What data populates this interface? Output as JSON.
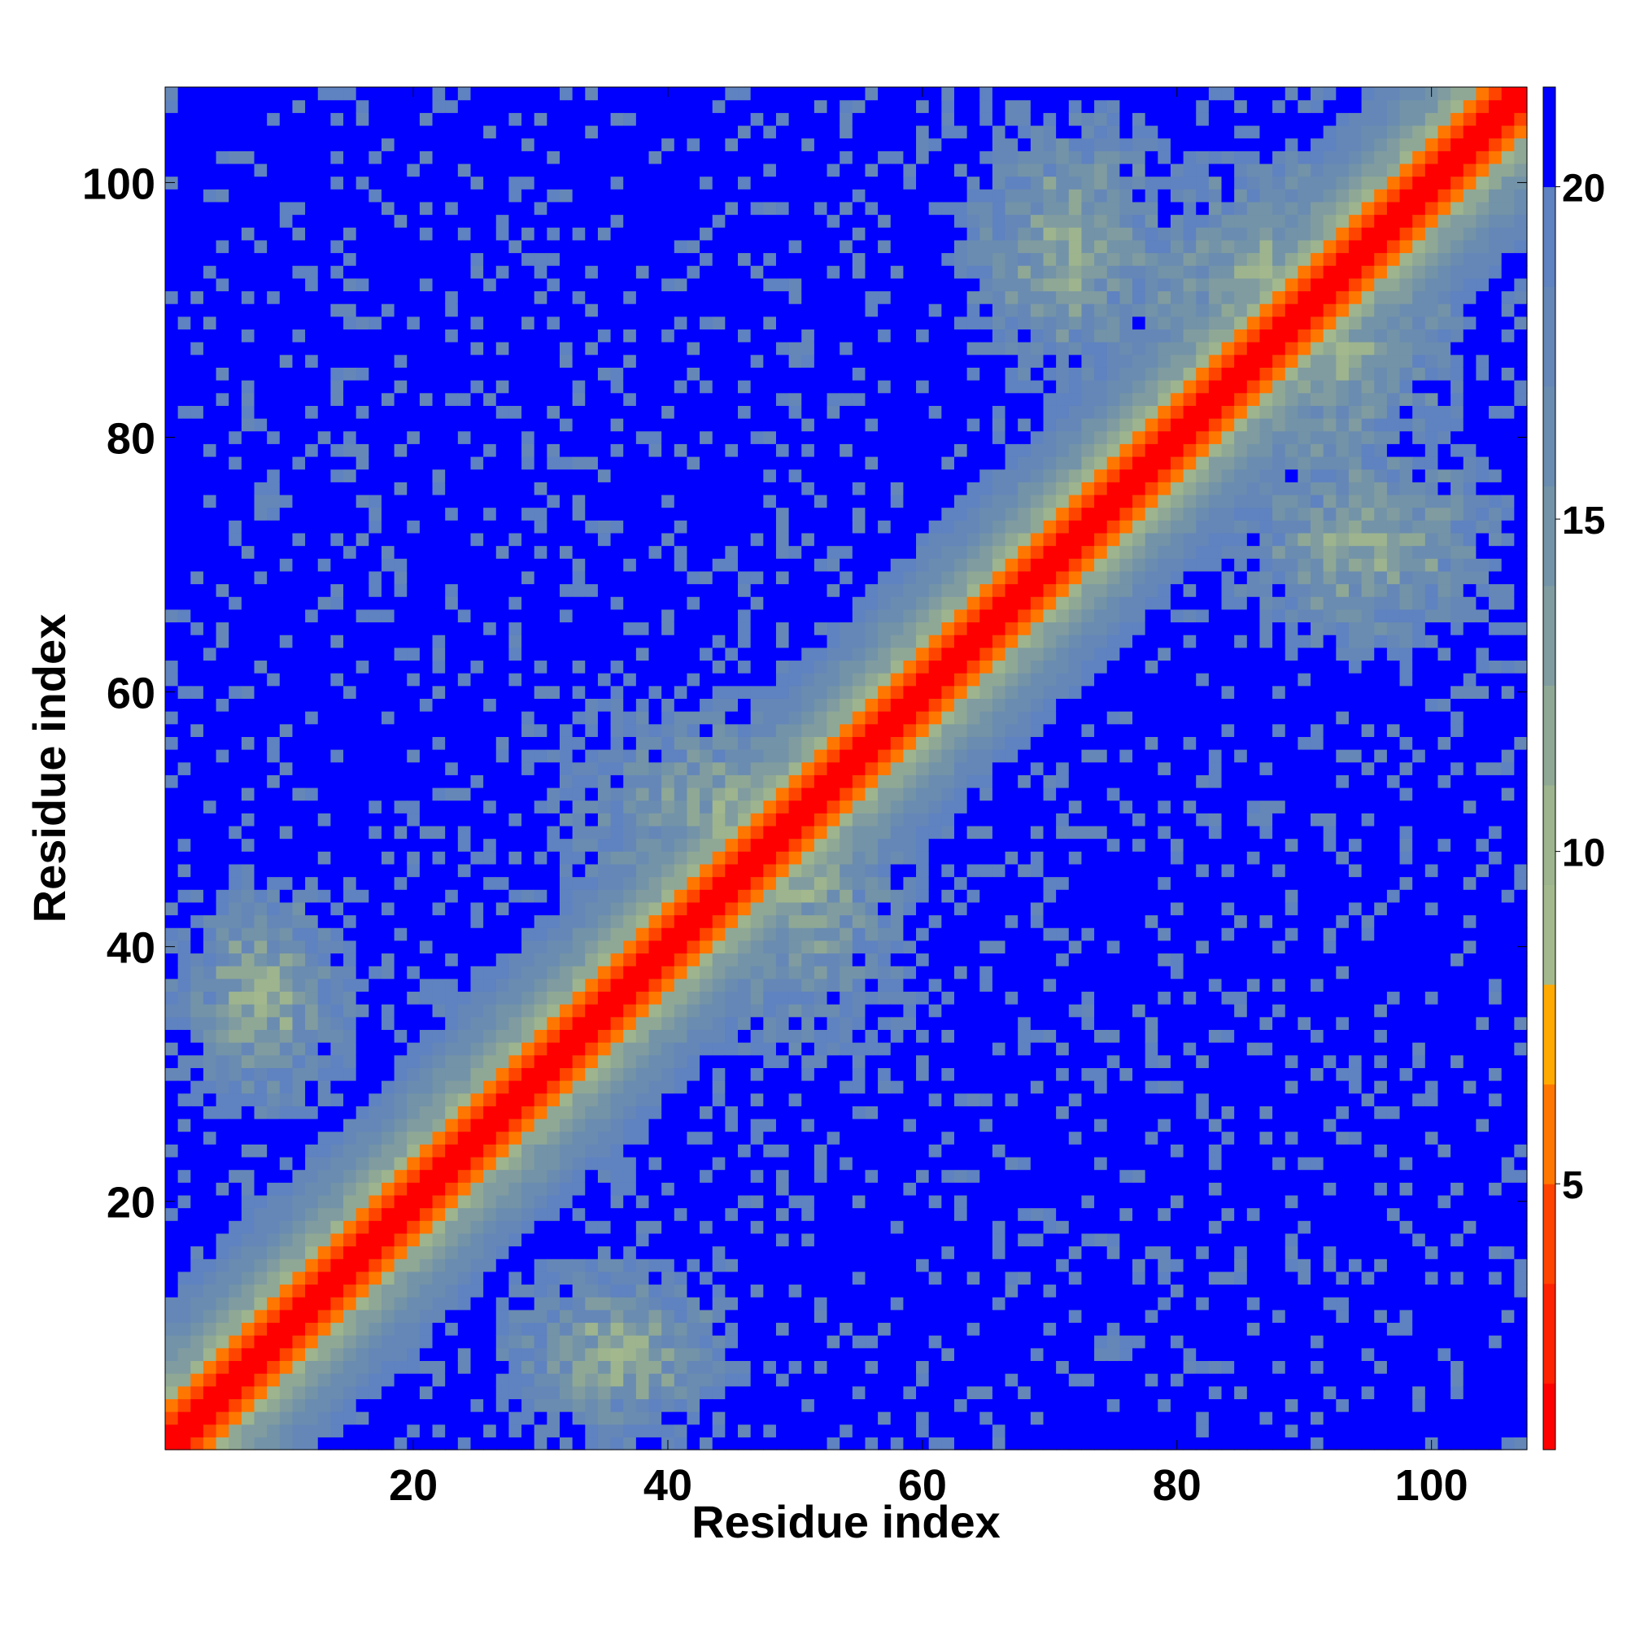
{
  "chart_data": {
    "type": "heatmap",
    "title": "",
    "xlabel": "Residue index",
    "ylabel": "Residue index",
    "n_residues": 107,
    "xlim": [
      1,
      107
    ],
    "ylim": [
      1,
      107
    ],
    "x_ticks": [
      20,
      40,
      60,
      80,
      100
    ],
    "y_ticks": [
      20,
      40,
      60,
      80,
      100
    ],
    "colorbar": {
      "ticks": [
        5,
        10,
        15,
        20
      ],
      "range": [
        1,
        21.5
      ],
      "levels": [
        {
          "max": 2.0,
          "color": "#ff0000"
        },
        {
          "max": 3.5,
          "color": "#ff2200"
        },
        {
          "max": 5.0,
          "color": "#ff4400"
        },
        {
          "max": 6.5,
          "color": "#ff7700"
        },
        {
          "max": 8.0,
          "color": "#ffaa00"
        },
        {
          "max": 9.5,
          "color": "#a3b98d"
        },
        {
          "max": 11.0,
          "color": "#9db48e"
        },
        {
          "max": 12.5,
          "color": "#8fa896"
        },
        {
          "max": 14.0,
          "color": "#809ca0"
        },
        {
          "max": 15.5,
          "color": "#7393a8"
        },
        {
          "max": 17.0,
          "color": "#6a8cb0"
        },
        {
          "max": 18.5,
          "color": "#6587b8"
        },
        {
          "max": 20.0,
          "color": "#5f82c0"
        },
        {
          "max": 21.5,
          "color": "#0000ff"
        }
      ]
    },
    "distance_map_description": "Symmetric residue-residue distance map; near-diagonal distances small (red/orange), off-diagonal contact regions near residues 1-45, 30-55, 60-107 and 80-107, background beyond cutoff (blue)",
    "contact_regions": [
      {
        "i": [
          1,
          15
        ],
        "j": [
          27,
          45
        ],
        "dist": 11
      },
      {
        "i": [
          22,
          45
        ],
        "j": [
          2,
          18
        ],
        "dist": 11
      },
      {
        "i": [
          42,
          60
        ],
        "j": [
          31,
          58
        ],
        "dist": 12
      },
      {
        "i": [
          30,
          58
        ],
        "j": [
          42,
          60
        ],
        "dist": 12
      },
      {
        "i": [
          63,
          80
        ],
        "j": [
          84,
          106
        ],
        "dist": 11
      },
      {
        "i": [
          84,
          106
        ],
        "j": [
          63,
          80
        ],
        "dist": 11
      },
      {
        "i": [
          77,
          100
        ],
        "j": [
          80,
          102
        ],
        "dist": 10
      }
    ]
  }
}
